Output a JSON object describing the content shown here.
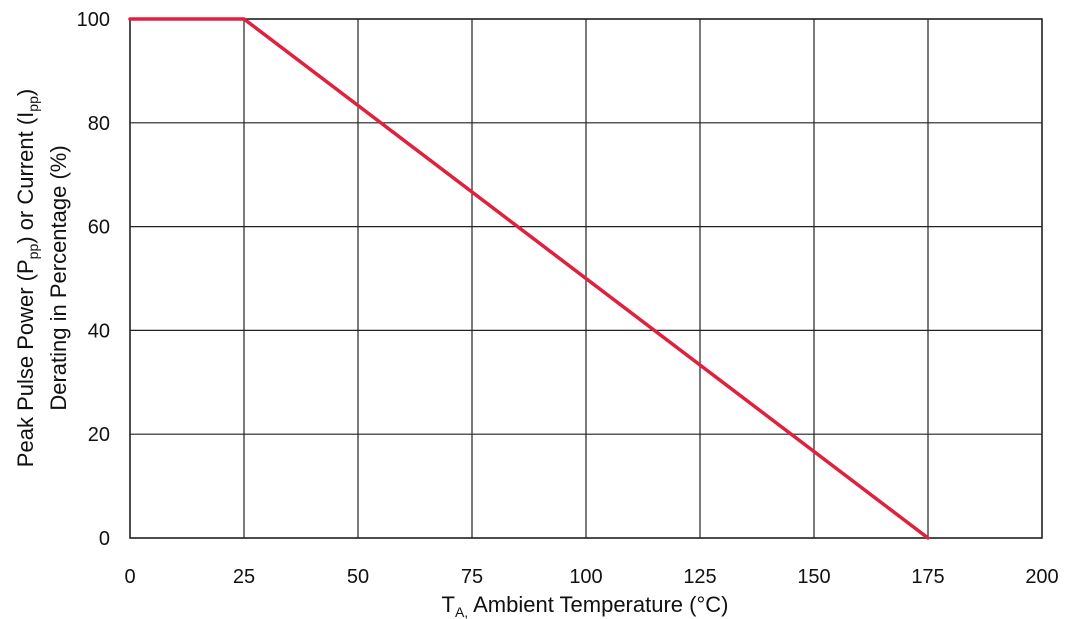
{
  "chart_data": {
    "type": "line",
    "title": "",
    "xlabel": {
      "main": "T",
      "sub": "A,",
      "rest": " Ambient Temperature (°C)"
    },
    "ylabel": {
      "line1": {
        "part1": "Peak Pulse Power (P",
        "sub1": "pp",
        "part2": ") or Current (I",
        "sub2": "pp",
        "part3": ")"
      },
      "line2": "Derating in Percentage (%)"
    },
    "xlim": [
      0,
      200
    ],
    "ylim": [
      0,
      100
    ],
    "x_ticks": [
      0,
      25,
      50,
      75,
      100,
      125,
      150,
      175,
      200
    ],
    "y_ticks": [
      0,
      20,
      40,
      60,
      80,
      100
    ],
    "grid": true,
    "series": [
      {
        "color": "#e0203c",
        "points": [
          {
            "x": 0,
            "y": 100
          },
          {
            "x": 25,
            "y": 100
          },
          {
            "x": 175,
            "y": 0
          }
        ]
      }
    ]
  }
}
